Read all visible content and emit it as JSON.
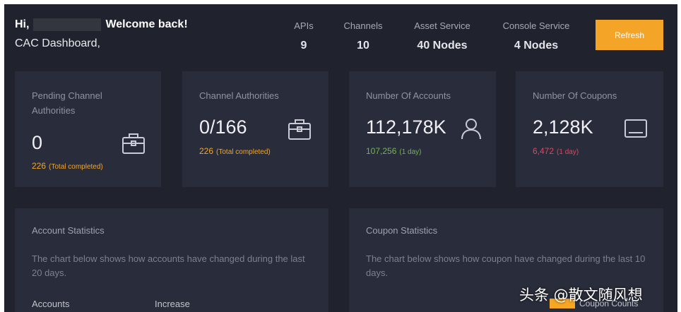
{
  "header": {
    "greeting_prefix": "Hi,",
    "greeting_suffix": "Welcome back!",
    "subtitle": "CAC Dashboard,",
    "stats": [
      {
        "label": "APIs",
        "value": "9"
      },
      {
        "label": "Channels",
        "value": "10"
      },
      {
        "label": "Asset Service",
        "value": "40 Nodes"
      },
      {
        "label": "Console Service",
        "value": "4 Nodes"
      }
    ],
    "refresh_label": "Refresh"
  },
  "cards": [
    {
      "title": "Pending Channel Authorities",
      "value": "0",
      "sub_value": "226",
      "sub_note": "(Total completed)",
      "icon": "briefcase-icon"
    },
    {
      "title": "Channel Authorities",
      "value": "0/166",
      "sub_value": "226",
      "sub_note": "(Total completed)",
      "icon": "briefcase-icon"
    },
    {
      "title": "Number Of Accounts",
      "value": "112,178K",
      "sub_value": "107,256",
      "sub_note": "(1 day)",
      "icon": "user-icon"
    },
    {
      "title": "Number Of Coupons",
      "value": "2,128K",
      "sub_value": "6,472",
      "sub_note": "(1 day)",
      "icon": "monitor-icon"
    }
  ],
  "panels": {
    "account": {
      "title": "Account Statistics",
      "description": "The chart below shows how accounts have changed during the last 20 days.",
      "col1": "Accounts",
      "col2": "Increase"
    },
    "coupon": {
      "title": "Coupon Statistics",
      "description": "The chart below shows how coupon have changed during the last 10 days.",
      "legend": "Coupon Counts"
    }
  },
  "watermark": "头条 @散文随风想",
  "colors": {
    "background": "#20222e",
    "card": "#292c3a",
    "accent": "#f4a426",
    "increase_green": "#72b552",
    "increase_red": "#e0475e"
  }
}
